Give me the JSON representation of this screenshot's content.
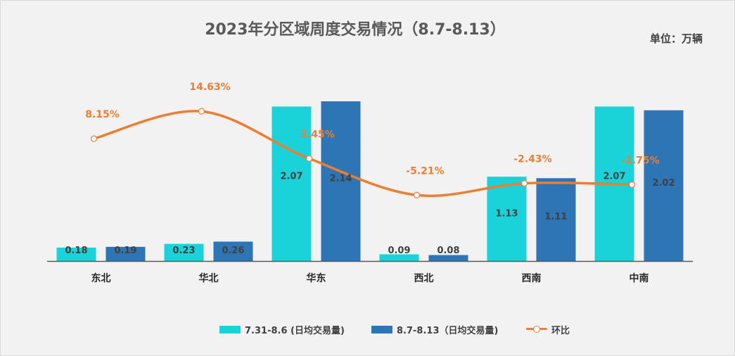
{
  "title": "2023年分区域周度交易情况（8.7-8.13）",
  "unit_label": "单位：万辆",
  "colors": {
    "series1": "#19d3da",
    "series2": "#2e75b6",
    "line": "#ed7d31",
    "axis": "#595959",
    "label_dark": "#404040"
  },
  "legend": {
    "series1": "7.31-8.6 (日均交易量)",
    "series2": "8.7-8.13（日均交易量)",
    "line": "环比"
  },
  "chart_data": {
    "type": "bar",
    "title": "2023年分区域周度交易情况（8.7-8.13）",
    "categories": [
      "东北",
      "华北",
      "华东",
      "西北",
      "西南",
      "中南"
    ],
    "series": [
      {
        "name": "7.31-8.6 (日均交易量)",
        "type": "bar",
        "values": [
          0.18,
          0.23,
          2.07,
          0.09,
          1.13,
          2.07
        ],
        "labels": [
          "0.18",
          "0.23",
          "2.07",
          "0.09",
          "1.13",
          "2.07"
        ]
      },
      {
        "name": "8.7-8.13（日均交易量)",
        "type": "bar",
        "values": [
          0.19,
          0.26,
          2.14,
          0.08,
          1.11,
          2.02
        ],
        "labels": [
          "0.19",
          "0.26",
          "2.14",
          "0.08",
          "1.11",
          "2.02"
        ]
      },
      {
        "name": "环比",
        "type": "line",
        "smooth": true,
        "values": [
          8.15,
          14.63,
          3.45,
          -5.21,
          -2.43,
          -2.75
        ],
        "labels": [
          "8.15%",
          "14.63%",
          "3.45%",
          "-5.21%",
          "-2.43%",
          "-2.75%"
        ]
      }
    ],
    "ylim": [
      0,
      2.14
    ],
    "line_ylim": [
      -10,
      20
    ],
    "grid": false,
    "legend_position": "bottom"
  }
}
